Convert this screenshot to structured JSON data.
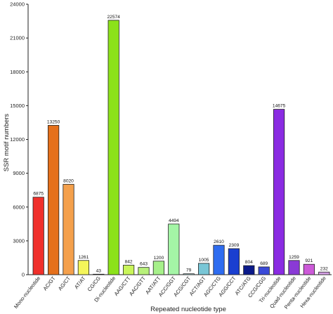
{
  "chart_data": {
    "type": "bar",
    "categories": [
      "Mono-nucleotide",
      "AC/GT",
      "AG/CT",
      "AT/AT",
      "CG/CG",
      "Di-nucleotide",
      "AAG/CTT",
      "AAC/GTT",
      "AAT/ATT",
      "ACC/GGT",
      "ACG/CGT",
      "ACT/AGT",
      "AGC/CTG",
      "AGG/CCT",
      "ATC/ATG",
      "CCG/CGG",
      "Tri-nucleotide",
      "Quad-nucleotide",
      "Penta-nucleotide",
      "Hexa-nucleotide"
    ],
    "values": [
      6875,
      13250,
      8020,
      1261,
      43,
      22574,
      842,
      643,
      1200,
      4494,
      79,
      1005,
      2610,
      2309,
      804,
      689,
      14675,
      1259,
      921,
      232
    ],
    "data_labels": [
      "6875",
      "13250",
      "8020",
      "1261",
      "43",
      "22574",
      "842",
      "643",
      "1200",
      "4494",
      "79",
      "1005",
      "2610",
      "2309",
      "804",
      "689",
      "14675",
      "1259",
      "921",
      "232"
    ],
    "colors": [
      "#f0302b",
      "#e5701b",
      "#f4a04c",
      "#f4f55a",
      "#ffffff",
      "#8ce21a",
      "#c9f55a",
      "#b7f07a",
      "#a6f08a",
      "#a4f5a6",
      "#b8ecec",
      "#79c6d6",
      "#2e6cf0",
      "#1a3fd0",
      "#0b1a8a",
      "#3a4ad8",
      "#8a2be2",
      "#8a3ad6",
      "#cc5ad8",
      "#d6a0e6"
    ],
    "ylabel": "SSR motif numbers",
    "xlabel": "Repeated nucleotide type",
    "ylim": [
      0,
      24000
    ],
    "yticks": [
      "0",
      "3000",
      "6000",
      "9000",
      "12000",
      "15000",
      "18000",
      "21000",
      "24000"
    ],
    "grid": false
  }
}
